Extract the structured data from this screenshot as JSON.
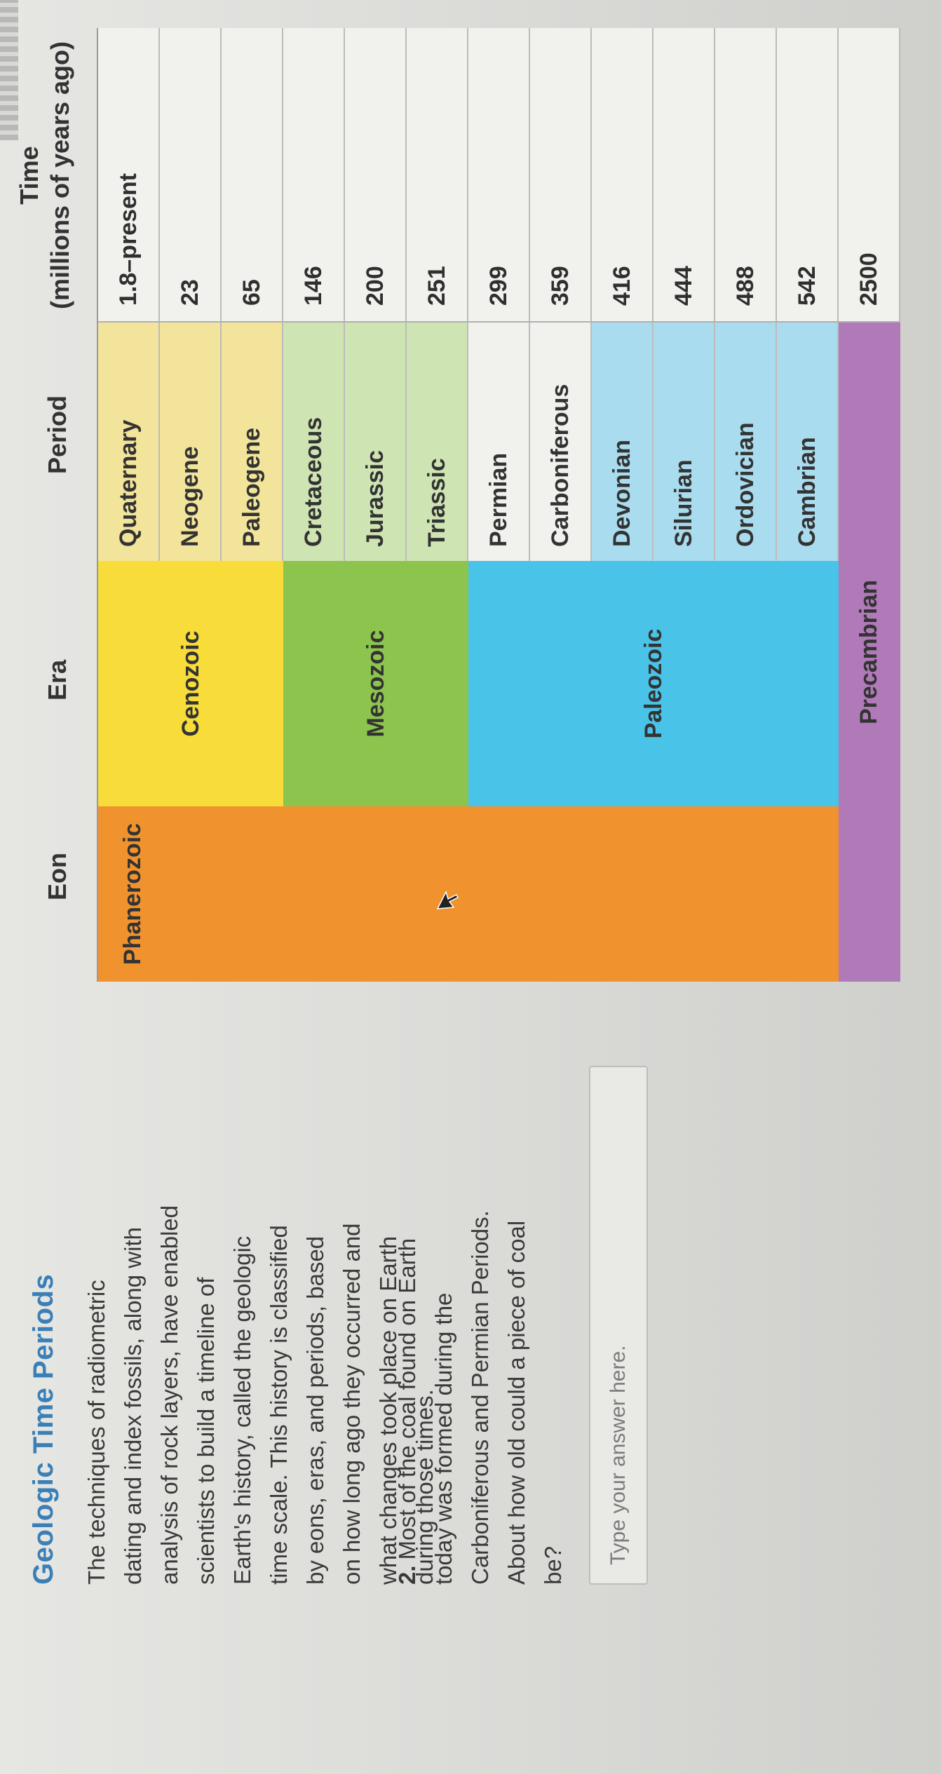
{
  "lesson": {
    "title": "Geologic Time Periods",
    "intro_lines": [
      "The techniques of radiometric",
      "dating and index fossils, along with",
      "analysis of rock layers, have enabled",
      "scientists to build a timeline of",
      "Earth's history, called the geologic",
      "time scale. This history is classified",
      "by eons, eras, and periods, based",
      "on how long ago they occurred and",
      "what changes took place on Earth",
      "during those times."
    ]
  },
  "question": {
    "number": "2.",
    "lines": [
      "Most of the coal found on Earth",
      "today was formed during the",
      "Carboniferous and Permian Periods.",
      "About how old could a piece of coal",
      "be?"
    ]
  },
  "answer": {
    "placeholder": "Type your answer here."
  },
  "table": {
    "headers": {
      "eon": "Eon",
      "era": "Era",
      "period": "Period",
      "time_line1": "Time",
      "time_line2": "(millions of years ago)"
    },
    "eons": [
      {
        "name": "Phanerozoic",
        "color": "#f0922e"
      },
      {
        "name": "Precambrian",
        "color": "#b07ab8"
      }
    ],
    "eras": [
      {
        "name": "Cenozoic",
        "color": "#f7dc3a"
      },
      {
        "name": "Mesozoic",
        "color": "#8cc44e"
      },
      {
        "name": "Paleozoic",
        "color": "#49c3e8"
      }
    ],
    "rows": [
      {
        "period": "Quaternary",
        "time": "1.8–present",
        "color": "#f2e49a"
      },
      {
        "period": "Neogene",
        "time": "23",
        "color": "#f2e49a"
      },
      {
        "period": "Paleogene",
        "time": "65",
        "color": "#f2e49a"
      },
      {
        "period": "Cretaceous",
        "time": "146",
        "color": "#cfe4b3"
      },
      {
        "period": "Jurassic",
        "time": "200",
        "color": "#cfe4b3"
      },
      {
        "period": "Triassic",
        "time": "251",
        "color": "#cfe4b3"
      },
      {
        "period": "Permian",
        "time": "299",
        "color": "#f1f1ee"
      },
      {
        "period": "Carboniferous",
        "time": "359",
        "color": "#f1f1ee"
      },
      {
        "period": "Devonian",
        "time": "416",
        "color": "#a9dcee"
      },
      {
        "period": "Silurian",
        "time": "444",
        "color": "#a9dcee"
      },
      {
        "period": "Ordovician",
        "time": "488",
        "color": "#a9dcee"
      },
      {
        "period": "Cambrian",
        "time": "542",
        "color": "#a9dcee"
      },
      {
        "period": "",
        "time": "2500",
        "color": "#f1f1ee"
      }
    ]
  }
}
